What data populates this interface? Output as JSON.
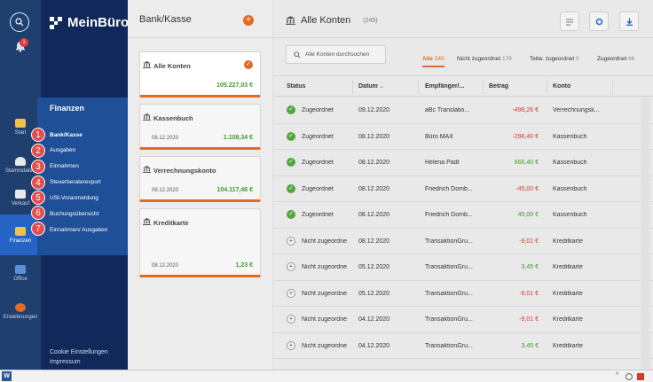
{
  "rail": {
    "notification_count": "1",
    "items": [
      {
        "label": "Start"
      },
      {
        "label": "Stammdaten"
      },
      {
        "label": "Verkauf"
      },
      {
        "label": "Finanzen"
      },
      {
        "label": "Office"
      },
      {
        "label": "Erweiterungen"
      }
    ]
  },
  "brand": {
    "name": "MeinBüro"
  },
  "nav_footer": {
    "cookie": "Cookie Einstellungen",
    "impressum": "Impressum"
  },
  "flyout": {
    "title": "Finanzen",
    "items": [
      {
        "num": "1",
        "label": "Bank/Kasse"
      },
      {
        "num": "2",
        "label": "Ausgaben"
      },
      {
        "num": "3",
        "label": "Einnahmen"
      },
      {
        "num": "4",
        "label": "Steuerberaterexport"
      },
      {
        "num": "5",
        "label": "USt-Voranmeldung"
      },
      {
        "num": "6",
        "label": "Buchungsübersicht"
      },
      {
        "num": "7",
        "label": "Einnahmen/ Ausgaben"
      }
    ]
  },
  "accounts": {
    "header": "Bank/Kasse",
    "cards": [
      {
        "name": "Alle Konten",
        "date": "",
        "amount": "105.227,03 €"
      },
      {
        "name": "Kassenbuch",
        "date": "08.12.2020",
        "amount": "1.108,34 €"
      },
      {
        "name": "Verrechnungskonto",
        "date": "09.12.2020",
        "amount": "104.117,46 €"
      },
      {
        "name": "Kreditkarte",
        "date": "08.12.2020",
        "amount": "1,23 €"
      }
    ]
  },
  "main": {
    "title": "Alle Konten",
    "count": "(245)",
    "search_placeholder": "Alle Konten durchsuchen",
    "filters": [
      {
        "label": "Alle",
        "count": "245"
      },
      {
        "label": "Nicht zugeordnet",
        "count": "179"
      },
      {
        "label": "Teilw. zugeordnet",
        "count": "0"
      },
      {
        "label": "Zugeordnet",
        "count": "66"
      }
    ],
    "columns": [
      "Status",
      "Datum",
      "Empfänger/...",
      "Betrag",
      "Konto"
    ],
    "rows": [
      {
        "status": "Zugeordnet",
        "date": "09.12.2020",
        "recipient": "aBc Translatio...",
        "amount": "-499,26 €",
        "account": "Verrechnungsk..."
      },
      {
        "status": "Zugeordnet",
        "date": "08.12.2020",
        "recipient": "Büro MAX",
        "amount": "-296,40 €",
        "account": "Kassenbuch"
      },
      {
        "status": "Zugeordnet",
        "date": "08.12.2020",
        "recipient": "Helena Padt",
        "amount": "666,40 €",
        "account": "Kassenbuch"
      },
      {
        "status": "Zugeordnet",
        "date": "08.12.2020",
        "recipient": "Friedrich Domb...",
        "amount": "-45,00 €",
        "account": "Kassenbuch"
      },
      {
        "status": "Zugeordnet",
        "date": "08.12.2020",
        "recipient": "Friedrich Domb...",
        "amount": "45,00 €",
        "account": "Kassenbuch"
      },
      {
        "status": "Nicht zugeordne",
        "date": "08.12.2020",
        "recipient": "TransaktionGru...",
        "amount": "-9,01 €",
        "account": "Kreditkarte"
      },
      {
        "status": "Nicht zugeordne",
        "date": "05.12.2020",
        "recipient": "TransaktionGru...",
        "amount": "3,45 €",
        "account": "Kreditkarte"
      },
      {
        "status": "Nicht zugeordne",
        "date": "05.12.2020",
        "recipient": "TransaktionGru...",
        "amount": "-9,01 €",
        "account": "Kreditkarte"
      },
      {
        "status": "Nicht zugeordne",
        "date": "04.12.2020",
        "recipient": "TransaktionGru...",
        "amount": "-9,01 €",
        "account": "Kreditkarte"
      },
      {
        "status": "Nicht zugeordne",
        "date": "04.12.2020",
        "recipient": "TransaktionGru...",
        "amount": "3,45 €",
        "account": "Kreditkarte"
      }
    ]
  },
  "colors": {
    "accent": "#e06a26",
    "navy": "#10295a",
    "rail": "#1f3f6e",
    "flyout": "#1e4f97",
    "positive": "#3e9a2a",
    "negative": "#d33a2a"
  }
}
